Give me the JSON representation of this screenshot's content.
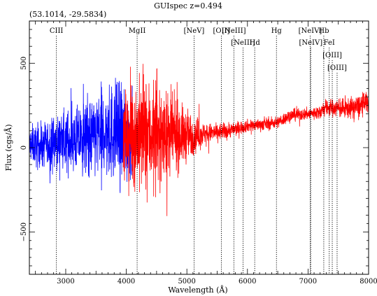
{
  "chart_data": {
    "type": "line",
    "title": "GUIspec z=0.494",
    "subtitle": "(53.1014, -29.5834)",
    "xlabel": "Wavelength (Å)",
    "ylabel": "Flux (cgs/Å)",
    "xlim": [
      2400,
      8000
    ],
    "ylim": [
      -750,
      750
    ],
    "x_ticks": [
      3000,
      4000,
      5000,
      6000,
      7000,
      8000
    ],
    "y_ticks": [
      -500,
      0,
      500
    ],
    "grid": false,
    "legend": "none",
    "series": [
      {
        "color": "#0000ff",
        "x_range": [
          2400,
          4100
        ],
        "description_points": [
          [
            2400,
            20
          ],
          [
            2600,
            10
          ],
          [
            2800,
            30
          ],
          [
            3000,
            40
          ],
          [
            3200,
            50
          ],
          [
            3400,
            60
          ],
          [
            3600,
            80
          ],
          [
            3800,
            90
          ],
          [
            4000,
            80
          ],
          [
            4100,
            70
          ]
        ],
        "noise_amplitude": [
          [
            2400,
            90
          ],
          [
            3000,
            140
          ],
          [
            3500,
            200
          ],
          [
            3900,
            260
          ],
          [
            4100,
            220
          ]
        ]
      },
      {
        "color": "#ff0000",
        "x_range": [
          3950,
          8000
        ],
        "description_points": [
          [
            3950,
            60
          ],
          [
            4200,
            80
          ],
          [
            4600,
            70
          ],
          [
            5000,
            70
          ],
          [
            5200,
            80
          ],
          [
            5500,
            90
          ],
          [
            5800,
            110
          ],
          [
            6000,
            130
          ],
          [
            6300,
            140
          ],
          [
            6500,
            150
          ],
          [
            6700,
            190
          ],
          [
            7000,
            200
          ],
          [
            7200,
            210
          ],
          [
            7300,
            240
          ],
          [
            7600,
            230
          ],
          [
            7800,
            240
          ],
          [
            8000,
            270
          ]
        ],
        "noise_amplitude": [
          [
            3950,
            230
          ],
          [
            4300,
            280
          ],
          [
            4700,
            200
          ],
          [
            5100,
            100
          ],
          [
            5300,
            50
          ],
          [
            6000,
            30
          ],
          [
            7000,
            30
          ],
          [
            7500,
            45
          ],
          [
            8000,
            60
          ]
        ]
      }
    ],
    "line_markers": [
      {
        "label": "CIII",
        "wavelength": 2846,
        "row": 0
      },
      {
        "label": "MgII",
        "wavelength": 4179,
        "row": 0
      },
      {
        "label": "[NeV]",
        "wavelength": 5119,
        "row": 0
      },
      {
        "label": "[OII]",
        "wavelength": 5569,
        "row": 0
      },
      {
        "label": "[NeIII]",
        "wavelength": 5776,
        "row": 0
      },
      {
        "label": "[NeIII]",
        "wavelength": 5927,
        "row": 1
      },
      {
        "label": "Hd",
        "wavelength": 6120,
        "row": 1
      },
      {
        "label": "Hg",
        "wavelength": 6479,
        "row": 0
      },
      {
        "label": "[NeIV]",
        "wavelength": 7035,
        "row": 0
      },
      {
        "label": "[NeIV]",
        "wavelength": 7045,
        "row": 1
      },
      {
        "label": "Hb",
        "wavelength": 7260,
        "row": 0
      },
      {
        "label": "FeI",
        "wavelength": 7350,
        "row": 1
      },
      {
        "label": "[OIII]",
        "wavelength": 7400,
        "row": 2
      },
      {
        "label": "[OIII]",
        "wavelength": 7480,
        "row": 3
      }
    ]
  }
}
